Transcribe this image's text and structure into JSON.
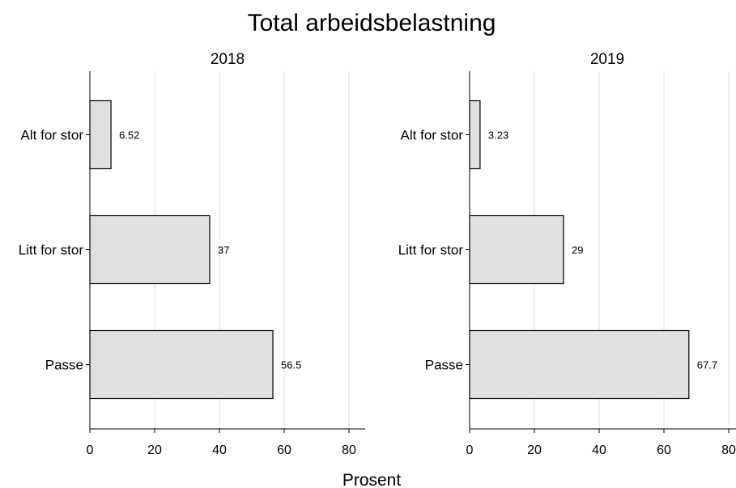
{
  "chart_data": {
    "type": "bar",
    "orientation": "horizontal",
    "title": "Total arbeidsbelastning",
    "xlabel": "Prosent",
    "xlim": [
      0,
      85
    ],
    "xticks": [
      0,
      20,
      40,
      60,
      80
    ],
    "grid": true,
    "bar_color": "#e0e0e0",
    "categories": [
      "Alt for stor",
      "Litt for stor",
      "Passe"
    ],
    "panels": [
      {
        "title": "2018",
        "values": [
          6.52,
          37,
          56.5
        ],
        "labels": [
          "6.52",
          "37",
          "56.5"
        ]
      },
      {
        "title": "2019",
        "values": [
          3.23,
          29,
          67.7
        ],
        "labels": [
          "3.23",
          "29",
          "67.7"
        ]
      }
    ]
  }
}
